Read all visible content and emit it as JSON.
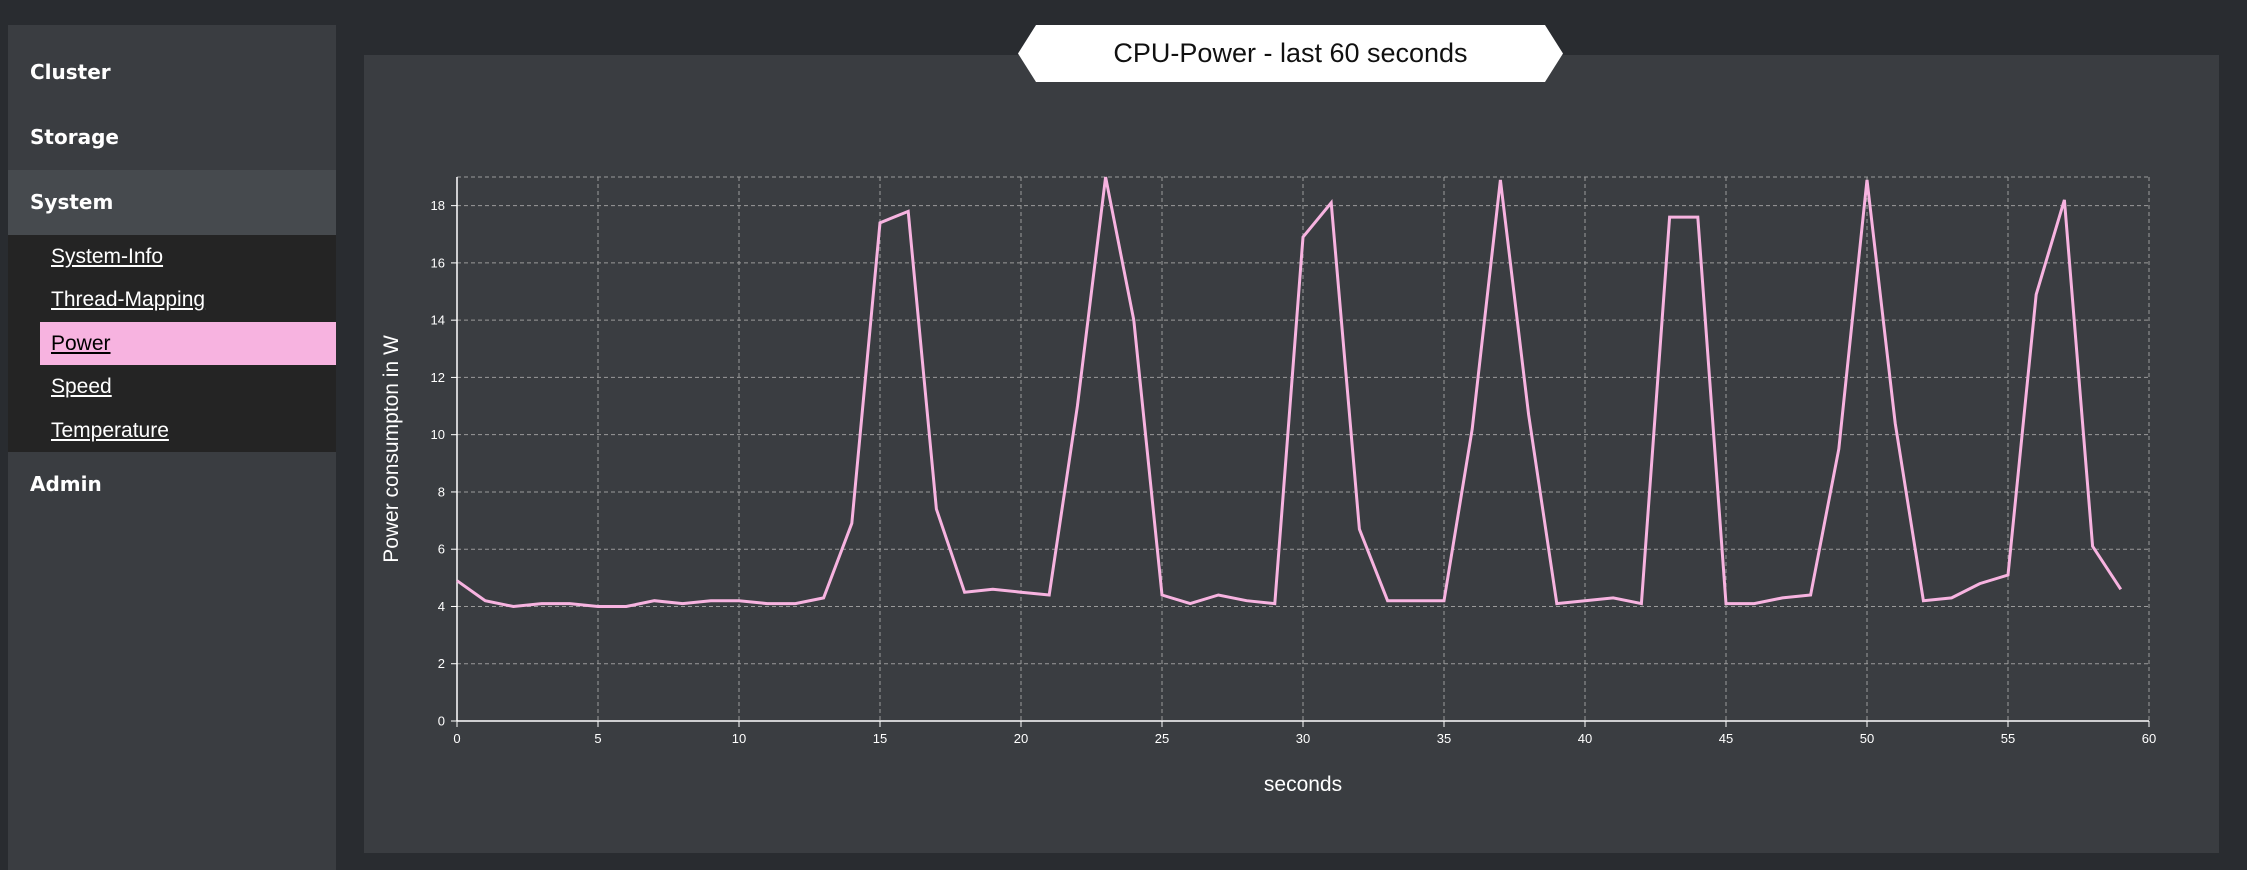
{
  "sidebar": {
    "items": [
      {
        "label": "Cluster"
      },
      {
        "label": "Storage"
      },
      {
        "label": "System"
      },
      {
        "label": "Admin"
      }
    ],
    "submenu": [
      {
        "label": "System-Info"
      },
      {
        "label": "Thread-Mapping"
      },
      {
        "label": "Power"
      },
      {
        "label": "Speed"
      },
      {
        "label": "Temperature"
      }
    ]
  },
  "colors": {
    "accent": "#f7b3e0",
    "line": "#f7b3e0",
    "panel": "#3a3d41",
    "grid": "#9a9a9a"
  },
  "chart_data": {
    "type": "line",
    "title": "CPU-Power - last 60 seconds",
    "xlabel": "seconds",
    "ylabel": "Power consumpton in W",
    "xlim": [
      0,
      60
    ],
    "ylim": [
      0,
      19
    ],
    "grid": true,
    "x_ticks": [
      "0",
      "5",
      "10",
      "15",
      "20",
      "25",
      "30",
      "35",
      "40",
      "45",
      "50",
      "55",
      "60"
    ],
    "y_ticks": [
      "0",
      "2",
      "4",
      "6",
      "8",
      "10",
      "12",
      "14",
      "16",
      "18"
    ],
    "series": [
      {
        "x": [
          0,
          1,
          2,
          3,
          4,
          5,
          6,
          7,
          8,
          9,
          10,
          11,
          12,
          13,
          14,
          15,
          16,
          17,
          18,
          19,
          20,
          21,
          22,
          23,
          24,
          25,
          26,
          27,
          28,
          29,
          30,
          31,
          32,
          33,
          34,
          35,
          36,
          37,
          38,
          39,
          40,
          41,
          42,
          43,
          44,
          45,
          46,
          47,
          48,
          49,
          50,
          51,
          52,
          53,
          54,
          55,
          56,
          57,
          58,
          59
        ],
        "values": [
          4.9,
          4.2,
          4.0,
          4.1,
          4.1,
          4.0,
          4.0,
          4.2,
          4.1,
          4.2,
          4.2,
          4.1,
          4.1,
          4.3,
          6.9,
          17.4,
          17.8,
          7.4,
          4.5,
          4.6,
          4.5,
          4.4,
          11.0,
          19.0,
          14.0,
          4.4,
          4.1,
          4.4,
          4.2,
          4.1,
          16.9,
          18.1,
          6.7,
          4.2,
          4.2,
          4.2,
          10.2,
          18.9,
          10.7,
          4.1,
          4.2,
          4.3,
          4.1,
          17.6,
          17.6,
          4.1,
          4.1,
          4.3,
          4.4,
          9.5,
          18.9,
          10.4,
          4.2,
          4.3,
          4.8,
          5.1,
          14.9,
          18.2,
          6.1,
          4.6
        ]
      }
    ]
  }
}
